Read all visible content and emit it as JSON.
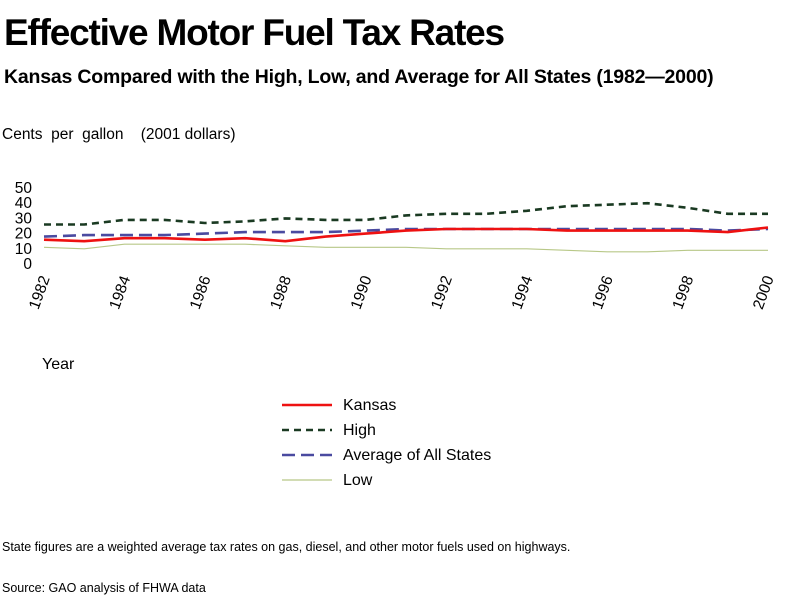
{
  "chart_data": {
    "type": "line",
    "title": "Effective Motor Fuel Tax Rates",
    "subtitle": "Kansas Compared with the High, Low, and Average for All States (1982—2000)",
    "ylabel": "Cents  per  gallon    (2001 dollars)",
    "xlabel": "Year",
    "x": [
      1982,
      1983,
      1984,
      1985,
      1986,
      1987,
      1988,
      1989,
      1990,
      1991,
      1992,
      1993,
      1994,
      1995,
      1996,
      1997,
      1998,
      1999,
      2000
    ],
    "x_tick_labels": [
      "1982",
      "1984",
      "1986",
      "1988",
      "1990",
      "1992",
      "1994",
      "1996",
      "1998",
      "2000"
    ],
    "y_ticks": [
      0,
      10,
      20,
      30,
      40,
      50
    ],
    "ylim": [
      0,
      50
    ],
    "grid": false,
    "legend_position": "bottom-center",
    "series": [
      {
        "name": "Kansas",
        "color": "#ee1111",
        "style": "solid",
        "values": [
          16,
          15,
          17,
          17,
          16,
          17,
          15,
          18,
          20,
          22,
          23,
          23,
          23,
          22,
          22,
          22,
          22,
          21,
          24
        ]
      },
      {
        "name": "High",
        "color": "#1a3a22",
        "style": "dotted",
        "values": [
          26,
          26,
          29,
          29,
          27,
          28,
          30,
          29,
          29,
          32,
          33,
          33,
          35,
          38,
          39,
          40,
          37,
          33,
          33
        ]
      },
      {
        "name": "Average of All States",
        "color": "#4a4aa0",
        "style": "dashed",
        "values": [
          18,
          19,
          19,
          19,
          20,
          21,
          21,
          21,
          22,
          23,
          23,
          23,
          23,
          23,
          23,
          23,
          23,
          22,
          23
        ]
      },
      {
        "name": "Low",
        "color": "#b8c888",
        "style": "solid-thin",
        "values": [
          11,
          10,
          13,
          13,
          13,
          13,
          12,
          11,
          11,
          11,
          10,
          10,
          10,
          9,
          8,
          8,
          9,
          9,
          9
        ]
      }
    ]
  },
  "footnote": "State figures are a  weighted  average  tax  rates  on  gas,  diesel,  and  other  motor  fuels  used  on  highways.",
  "source": "Source:  GAO  analysis  of  FHWA  data"
}
